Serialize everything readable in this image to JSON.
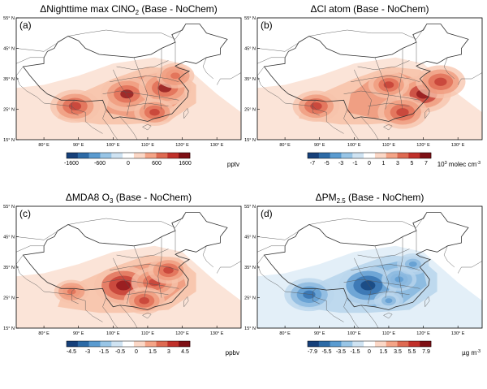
{
  "lat_labels": [
    "55° N",
    "45° N",
    "35° N",
    "25° N",
    "15° N"
  ],
  "lon_labels": [
    "80° E",
    "90° E",
    "100° E",
    "110° E",
    "120° E",
    "130° E"
  ],
  "panels": [
    {
      "id": "a",
      "label": "(a)",
      "title_pre": "ΔNighttime max ClNO",
      "title_sub": "2",
      "title_post": " (Base - NoChem)",
      "colorbar_ticks": [
        "-1600",
        "-600",
        "0",
        "600",
        "1600"
      ],
      "unit_pre": "pptv",
      "unit_sup": "",
      "unit_post": "",
      "colors": [
        "#16407a",
        "#2c6aa6",
        "#5a9bd0",
        "#98c5e6",
        "#cfe3f2",
        "#ffffff",
        "#fbd7c6",
        "#f4a487",
        "#de6a52",
        "#c0302a",
        "#7e0f14"
      ],
      "palette": "red",
      "hotspots": [
        [
          104,
          30,
          0.9
        ],
        [
          115,
          32,
          0.9
        ],
        [
          112,
          24,
          0.7
        ],
        [
          89,
          26,
          0.85
        ],
        [
          118,
          36,
          0.65
        ]
      ]
    },
    {
      "id": "b",
      "label": "(b)",
      "title_pre": "ΔCl atom (Base - NoChem)",
      "title_sub": "",
      "title_post": "",
      "colorbar_ticks": [
        "-7",
        "-5",
        "-3",
        "-1",
        "0",
        "1",
        "3",
        "5",
        "7"
      ],
      "unit_pre": "10",
      "unit_sup": "3",
      "unit_post": " molec cm",
      "unit_sup2": "-3",
      "colors": [
        "#16407a",
        "#2c6aa6",
        "#5a9bd0",
        "#98c5e6",
        "#cfe3f2",
        "#ffffff",
        "#fbd7c6",
        "#f4a487",
        "#de6a52",
        "#c0302a",
        "#7e0f14"
      ],
      "palette": "red",
      "hotspots": [
        [
          120,
          30,
          0.95
        ],
        [
          114,
          24,
          0.85
        ],
        [
          125,
          34,
          0.85
        ],
        [
          89,
          26,
          0.8
        ],
        [
          110,
          33,
          0.7
        ]
      ]
    },
    {
      "id": "c",
      "label": "(c)",
      "title_pre": "ΔMDA8 O",
      "title_sub": "3",
      "title_post": " (Base - NoChem)",
      "colorbar_ticks": [
        "-4.5",
        "-3",
        "-1.5",
        "-0.5",
        "0",
        "1.5",
        "3",
        "4.5"
      ],
      "unit_pre": "ppbv",
      "unit_sup": "",
      "unit_post": "",
      "colors": [
        "#16407a",
        "#2c6aa6",
        "#5a9bd0",
        "#98c5e6",
        "#cfe3f2",
        "#ffffff",
        "#fbd7c6",
        "#f4a487",
        "#de6a52",
        "#c0302a",
        "#7e0f14"
      ],
      "palette": "red",
      "hotspots": [
        [
          103,
          29,
          1.0
        ],
        [
          112,
          30,
          0.8
        ],
        [
          116,
          34,
          0.7
        ],
        [
          88,
          27,
          0.6
        ],
        [
          109,
          24,
          0.7
        ]
      ]
    },
    {
      "id": "d",
      "label": "(d)",
      "title_pre": "ΔPM",
      "title_sub": "2.5",
      "title_post": " (Base - NoChem)",
      "colorbar_ticks": [
        "-7.9",
        "-5.5",
        "-3.5",
        "-1.5",
        "0",
        "1.5",
        "3.5",
        "5.5",
        "7.9"
      ],
      "unit_pre": "µg m",
      "unit_sup": "-3",
      "unit_post": "",
      "colors": [
        "#16407a",
        "#2c6aa6",
        "#5a9bd0",
        "#98c5e6",
        "#cfe3f2",
        "#ffffff",
        "#fbd7c6",
        "#f4a487",
        "#de6a52",
        "#c0302a",
        "#7e0f14"
      ],
      "palette": "blue",
      "hotspots": [
        [
          104,
          29,
          1.0
        ],
        [
          87,
          26,
          0.85
        ],
        [
          113,
          31,
          0.6
        ],
        [
          117,
          36,
          0.55
        ],
        [
          110,
          24,
          0.5
        ]
      ]
    }
  ]
}
